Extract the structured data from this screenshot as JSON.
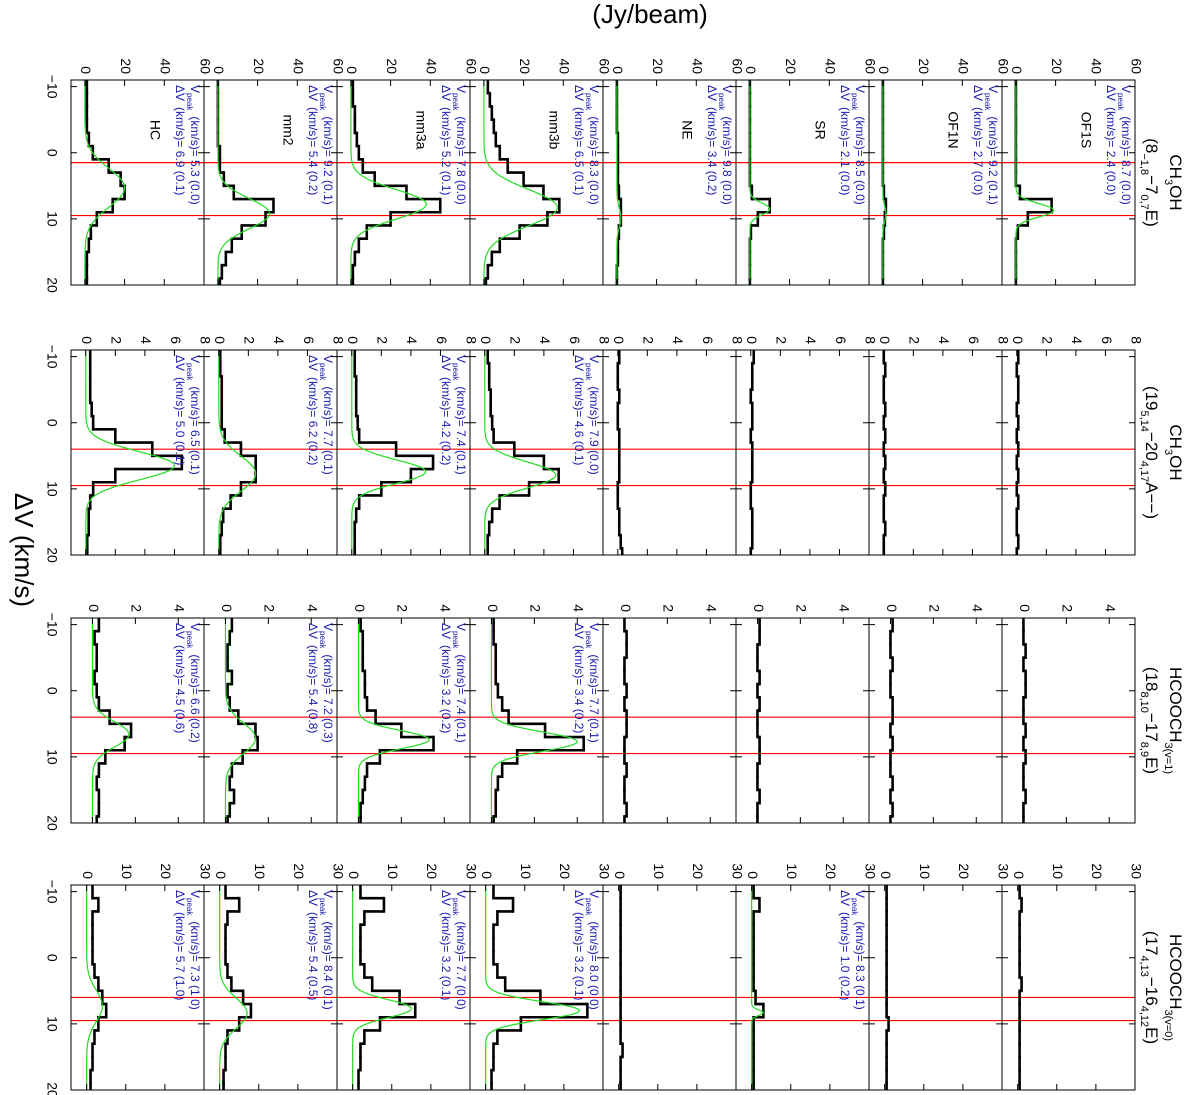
{
  "figure": {
    "y_label": "(Jy/beam)",
    "x_label": "ΔV (km/s)",
    "vpeak_symbol": "V",
    "vpeak_sub": "peak",
    "unit": "(km/s)",
    "dv_symbol": "ΔV",
    "line_color": "#000000",
    "fit_color": "#22dd22",
    "ref_color": "#ff0000",
    "annotation_color": "#1a1ab0",
    "frame_color": "#000000"
  },
  "chart_data": [
    {
      "type": "step",
      "title": [
        [
          {
            "t": "CH"
          },
          {
            "t": "3",
            "sub": true
          },
          {
            "t": "OH"
          }
        ],
        [
          {
            "t": "(8"
          },
          {
            "t": "−1,8",
            "sub": true
          },
          {
            "t": "−7"
          },
          {
            "t": "0,7",
            "sub": true
          },
          {
            "t": "E)"
          }
        ]
      ],
      "xlim": [
        -11,
        20
      ],
      "xticks": [
        {
          "value": -10,
          "label": "−10"
        },
        0,
        10,
        20
      ],
      "ylim": [
        -7,
        60
      ],
      "yticks": [
        0,
        20,
        40,
        60
      ],
      "ref_lines": [
        1.5,
        9.5
      ],
      "x": [
        -10,
        -8,
        -6,
        -4,
        -2,
        0,
        2,
        4,
        6,
        8,
        10,
        12,
        14,
        16,
        18,
        20
      ],
      "panels": [
        {
          "name": "OF1S",
          "vpeak_text": "= 8.7 (0.0)",
          "dv_text": "= 2.4 (0.0)",
          "values": [
            0,
            0,
            0,
            0,
            0,
            0,
            0,
            0,
            2,
            18,
            6,
            1,
            0,
            0,
            0,
            0
          ],
          "fit": {
            "amplitude": 19,
            "center": 8.7,
            "fwhm": 2.4
          }
        },
        {
          "name": "OF1N",
          "vpeak_text": "= 9.2 (0.1)",
          "dv_text": "= 2.7 (0.0)",
          "values": [
            0,
            0,
            0,
            0,
            0,
            0,
            0,
            0,
            0.5,
            1.5,
            1,
            0.5,
            0,
            0,
            0,
            0
          ],
          "fit": {
            "amplitude": 1.5,
            "center": 9.2,
            "fwhm": 2.7
          }
        },
        {
          "name": "SR",
          "vpeak_text": "= 8.5 (0.0)",
          "dv_text": "= 2.1 (0.0)",
          "values": [
            0,
            0,
            0,
            0,
            0,
            0,
            0,
            0,
            1,
            10,
            4,
            0.5,
            0,
            0,
            0,
            0
          ],
          "fit": {
            "amplitude": 10,
            "center": 8.5,
            "fwhm": 2.1
          }
        },
        {
          "name": "NE",
          "vpeak_text": "= 9.8 (0.0)",
          "dv_text": "= 3.4 (0.2)",
          "values": [
            0,
            0,
            0,
            0,
            0.5,
            0.5,
            0.5,
            0.5,
            1,
            2,
            2,
            1,
            0.5,
            0.5,
            0,
            0
          ],
          "fit": {
            "amplitude": 2,
            "center": 9.8,
            "fwhm": 3.4
          }
        },
        {
          "name": "mm3b",
          "vpeak_text": "= 8.3 (0.0)",
          "dv_text": "= 6.5 (0.1)",
          "values": [
            2,
            3,
            4,
            5,
            6,
            8,
            12,
            20,
            30,
            38,
            32,
            18,
            8,
            4,
            2,
            1
          ],
          "fit": {
            "amplitude": 37,
            "center": 8.3,
            "fwhm": 6.5
          }
        },
        {
          "name": "mm3a",
          "vpeak_text": "= 7.8 (0.0)",
          "dv_text": "= 5.2 (0.1)",
          "values": [
            1,
            1,
            2,
            2,
            3,
            4,
            6,
            12,
            28,
            45,
            20,
            8,
            4,
            2,
            1,
            1
          ],
          "fit": {
            "amplitude": 38,
            "center": 7.8,
            "fwhm": 5.2
          }
        },
        {
          "name": "mm2",
          "vpeak_text": "= 9.2 (0.1)",
          "dv_text": "= 5.4 (0.2)",
          "values": [
            0,
            0,
            0,
            0,
            0,
            1,
            1,
            3,
            8,
            28,
            24,
            12,
            7,
            4,
            2,
            1
          ],
          "fit": {
            "amplitude": 26,
            "center": 9.2,
            "fwhm": 5.4
          }
        },
        {
          "name": "HC",
          "vpeak_text": "= 5.3 (0.0)",
          "dv_text": "= 6.9 (0.1)",
          "values": [
            1,
            1,
            1,
            1,
            2,
            4,
            12,
            18,
            20,
            14,
            6,
            3,
            2,
            1,
            1,
            1
          ],
          "fit": {
            "amplitude": 20,
            "center": 5.3,
            "fwhm": 6.9
          }
        }
      ]
    },
    {
      "type": "step",
      "title": [
        [
          {
            "t": "CH"
          },
          {
            "t": "3",
            "sub": true
          },
          {
            "t": "OH"
          }
        ],
        [
          {
            "t": "(19"
          },
          {
            "t": "5,14",
            "sub": true
          },
          {
            "t": "−20"
          },
          {
            "t": "4,17",
            "sub": true
          },
          {
            "t": "A−−)"
          }
        ]
      ],
      "xlim": [
        -11,
        20
      ],
      "xticks": [
        {
          "value": -10,
          "label": "−10"
        },
        0,
        10,
        20
      ],
      "ylim": [
        -1,
        8
      ],
      "yticks": [
        0,
        2,
        4,
        6,
        8
      ],
      "ref_lines": [
        4,
        9.5
      ],
      "x": [
        -10,
        -8,
        -6,
        -4,
        -2,
        0,
        2,
        4,
        6,
        8,
        10,
        12,
        14,
        16,
        18,
        20
      ],
      "panels": [
        {
          "values": [
            0.1,
            0,
            0.1,
            0.1,
            0,
            0.1,
            0,
            0.1,
            0,
            0.1,
            0,
            0.1,
            0,
            0,
            0.1,
            0
          ]
        },
        {
          "values": [
            0,
            0.1,
            0,
            0,
            0.1,
            0,
            0.1,
            0,
            0.1,
            0,
            0.1,
            0,
            0,
            0.1,
            0,
            0
          ]
        },
        {
          "values": [
            0.2,
            0.1,
            0.1,
            0,
            0.1,
            0.1,
            0,
            0.1,
            0.1,
            0.1,
            0,
            0,
            0.1,
            0.1,
            0.1,
            0
          ]
        },
        {
          "values": [
            0.1,
            0,
            0,
            0.1,
            0,
            0,
            0.1,
            0.1,
            0.1,
            0.1,
            0,
            0,
            0.1,
            0.1,
            0.2,
            0.3
          ]
        },
        {
          "vpeak_text": "= 7.9 (0.0)",
          "dv_text": "= 4.6 (0.1)",
          "values": [
            0.2,
            0.3,
            0.3,
            0.4,
            0.4,
            0.5,
            0.6,
            2,
            4,
            5,
            3,
            1,
            0.5,
            0.3,
            0.2,
            0.2
          ],
          "fit": {
            "amplitude": 4.8,
            "center": 7.9,
            "fwhm": 4.6
          }
        },
        {
          "vpeak_text": "= 7.4 (0.1)",
          "dv_text": "= 4.2 (0.2)",
          "values": [
            0.2,
            0.2,
            0.3,
            0.3,
            0.3,
            0.4,
            0.5,
            3,
            5.5,
            4,
            2,
            0.5,
            0.3,
            0.2,
            0.2,
            0.2
          ],
          "fit": {
            "amplitude": 5,
            "center": 7.4,
            "fwhm": 4.2
          }
        },
        {
          "vpeak_text": "= 7.7 (0.1)",
          "dv_text": "= 6.2 (0.2)",
          "values": [
            0.1,
            0.1,
            0.2,
            0.2,
            0.2,
            0.2,
            0.4,
            1.5,
            2.5,
            2.5,
            1.5,
            0.8,
            0.3,
            0.2,
            0.1,
            0.1
          ],
          "fit": {
            "amplitude": 2.5,
            "center": 7.7,
            "fwhm": 6.2
          }
        },
        {
          "vpeak_text": "= 6.5 (0.1)",
          "dv_text": "= 5.0 (0.1)",
          "values": [
            0.3,
            0.3,
            0.3,
            0.3,
            0.4,
            0.5,
            2,
            4.5,
            6.5,
            2,
            0.5,
            0.3,
            0.2,
            0.2,
            0.1,
            0.1
          ],
          "fit": {
            "amplitude": 6,
            "center": 6.5,
            "fwhm": 5.0
          }
        }
      ]
    },
    {
      "type": "step",
      "title": [
        [
          {
            "t": "HCOOCH"
          },
          {
            "t": "3(v=1)",
            "sub": true
          }
        ],
        [
          {
            "t": "(18"
          },
          {
            "t": "8,10",
            "sub": true
          },
          {
            "t": "−17"
          },
          {
            "t": "8,9",
            "sub": true
          },
          {
            "t": "E)"
          }
        ]
      ],
      "xlim": [
        -11,
        20
      ],
      "xticks": [
        {
          "value": -10,
          "label": "−10"
        },
        0,
        10,
        20
      ],
      "ylim": [
        -1,
        5.2
      ],
      "yticks": [
        0,
        2,
        4
      ],
      "ref_lines": [
        4,
        9.5
      ],
      "x": [
        -10,
        -8,
        -6,
        -4,
        -2,
        0,
        2,
        4,
        6,
        8,
        10,
        12,
        14,
        16,
        18,
        20
      ],
      "panels": [
        {
          "values": [
            0,
            0,
            0.1,
            0,
            0.1,
            0.1,
            0,
            0,
            0.1,
            0,
            0.1,
            0,
            0,
            0.1,
            0,
            0
          ]
        },
        {
          "values": [
            0.1,
            0,
            0,
            0.1,
            0,
            0,
            0.1,
            0.1,
            0,
            0.1,
            0,
            0,
            0.1,
            0,
            0.1,
            0
          ]
        },
        {
          "values": [
            0.1,
            0.1,
            0,
            0,
            0.1,
            0,
            0.1,
            0,
            0,
            0.1,
            0.1,
            0,
            0,
            0.1,
            0,
            0
          ]
        },
        {
          "values": [
            0,
            0.1,
            0.1,
            0,
            0,
            0.1,
            0,
            0.1,
            0.1,
            0,
            0,
            0.1,
            0,
            0,
            0.1,
            0
          ]
        },
        {
          "vpeak_text": "= 7.7 (0.1)",
          "dv_text": "= 3.4 (0.2)",
          "values": [
            0.1,
            0.1,
            0.2,
            0.2,
            0.2,
            0.3,
            0.5,
            0.8,
            2.5,
            4.3,
            1.2,
            0.5,
            0.3,
            0.2,
            0.2,
            0.1
          ],
          "fit": {
            "amplitude": 4,
            "center": 7.7,
            "fwhm": 3.4
          }
        },
        {
          "vpeak_text": "= 7.4 (0.1)",
          "dv_text": "= 3.2 (0.2)",
          "values": [
            0.1,
            0.2,
            0.2,
            0.2,
            0.3,
            0.3,
            0.4,
            0.8,
            2,
            3.5,
            1,
            0.4,
            0.3,
            0.2,
            0.1,
            0.1
          ],
          "fit": {
            "amplitude": 3.3,
            "center": 7.4,
            "fwhm": 3.2
          }
        },
        {
          "vpeak_text": "= 7.2 (0.3)",
          "dv_text": "= 5.4 (0.8)",
          "values": [
            0.3,
            0.2,
            0.1,
            0.1,
            0.3,
            0.1,
            0.2,
            0.6,
            1.4,
            1.5,
            0.8,
            0.3,
            0.2,
            0.4,
            0.2,
            0.1
          ],
          "fit": {
            "amplitude": 1.4,
            "center": 7.2,
            "fwhm": 5.4
          }
        },
        {
          "vpeak_text": "= 6.6 (0.2)",
          "dv_text": "= 4.5 (0.6)",
          "values": [
            0.3,
            0.1,
            0.2,
            0.2,
            0.1,
            0.2,
            0.3,
            0.8,
            1.8,
            1.5,
            0.6,
            0.3,
            0.2,
            0.3,
            0.3,
            0.2
          ],
          "fit": {
            "amplitude": 1.7,
            "center": 6.6,
            "fwhm": 4.5
          }
        }
      ]
    },
    {
      "type": "step",
      "title": [
        [
          {
            "t": "HCOOCH"
          },
          {
            "t": "3(v=0)",
            "sub": true
          }
        ],
        [
          {
            "t": "(17"
          },
          {
            "t": "4,13",
            "sub": true
          },
          {
            "t": "−16"
          },
          {
            "t": "4,12",
            "sub": true
          },
          {
            "t": "E)"
          }
        ]
      ],
      "xlim": [
        -11,
        20
      ],
      "xticks": [
        {
          "value": -10,
          "label": "−10"
        },
        0,
        10,
        20
      ],
      "ylim": [
        -4,
        30
      ],
      "yticks": [
        0,
        10,
        20,
        30
      ],
      "ref_lines": [
        6,
        9.5
      ],
      "x": [
        -10,
        -8,
        -6,
        -4,
        -2,
        0,
        2,
        4,
        6,
        8,
        10,
        12,
        14,
        16,
        18,
        20
      ],
      "panels": [
        {
          "values": [
            0.5,
            1,
            0.5,
            0.5,
            0.5,
            0.5,
            0.5,
            1,
            0.5,
            0.5,
            0.5,
            0.5,
            0.5,
            0.5,
            0.5,
            0.5
          ]
        },
        {
          "values": [
            0.5,
            0.5,
            0.5,
            0.5,
            0.5,
            0.5,
            0.5,
            0.5,
            0.5,
            0.5,
            1,
            0.5,
            0.5,
            0.5,
            0.5,
            0.5
          ]
        },
        {
          "vpeak_text": "= 8.3 (0.1)",
          "dv_text": "= 1.0 (0.2)",
          "values": [
            0.5,
            2,
            0.5,
            0.5,
            0.5,
            0.5,
            0.5,
            0.5,
            1,
            3,
            0.5,
            0.5,
            0.5,
            0.5,
            0.5,
            0.5
          ],
          "fit": {
            "amplitude": 3,
            "center": 8.3,
            "fwhm": 1.0
          }
        },
        {
          "values": [
            0.5,
            0.5,
            0.5,
            0.5,
            0.5,
            0.5,
            0.5,
            0.5,
            0.5,
            0.5,
            0.5,
            0.5,
            1,
            0.5,
            0.5,
            0.5
          ]
        },
        {
          "vpeak_text": "= 8.0 (0.0)",
          "dv_text": "= 3.2 (0.1)",
          "values": [
            2,
            7,
            3,
            2,
            2,
            2,
            3,
            5,
            14,
            26,
            9,
            3,
            2,
            2,
            1.5,
            1.5
          ],
          "fit": {
            "amplitude": 24,
            "center": 8.0,
            "fwhm": 3.2
          }
        },
        {
          "vpeak_text": "= 7.7 (0.0)",
          "dv_text": "= 3.2 (0.1)",
          "values": [
            2,
            8,
            3,
            2,
            2,
            2,
            3,
            5,
            12,
            16,
            7,
            3,
            2,
            2,
            1.5,
            1.5
          ],
          "fit": {
            "amplitude": 15,
            "center": 7.7,
            "fwhm": 3.2
          }
        },
        {
          "vpeak_text": "= 8.4 (0.1)",
          "dv_text": "= 5.4 (0.5)",
          "values": [
            1.5,
            5,
            2,
            1.5,
            1.5,
            1.5,
            2,
            3,
            6,
            8,
            5,
            2,
            1.5,
            1.5,
            1,
            1
          ],
          "fit": {
            "amplitude": 7,
            "center": 8.4,
            "fwhm": 5.4
          }
        },
        {
          "vpeak_text": "= 7.3 (1.0)",
          "dv_text": "= 5.7 (1.0)",
          "values": [
            1.5,
            3,
            1.5,
            1.5,
            1.5,
            1.5,
            2,
            3,
            4,
            5,
            3,
            2,
            1.5,
            1.5,
            1,
            1
          ],
          "fit": {
            "amplitude": 4,
            "center": 7.3,
            "fwhm": 5.7
          }
        }
      ]
    }
  ]
}
